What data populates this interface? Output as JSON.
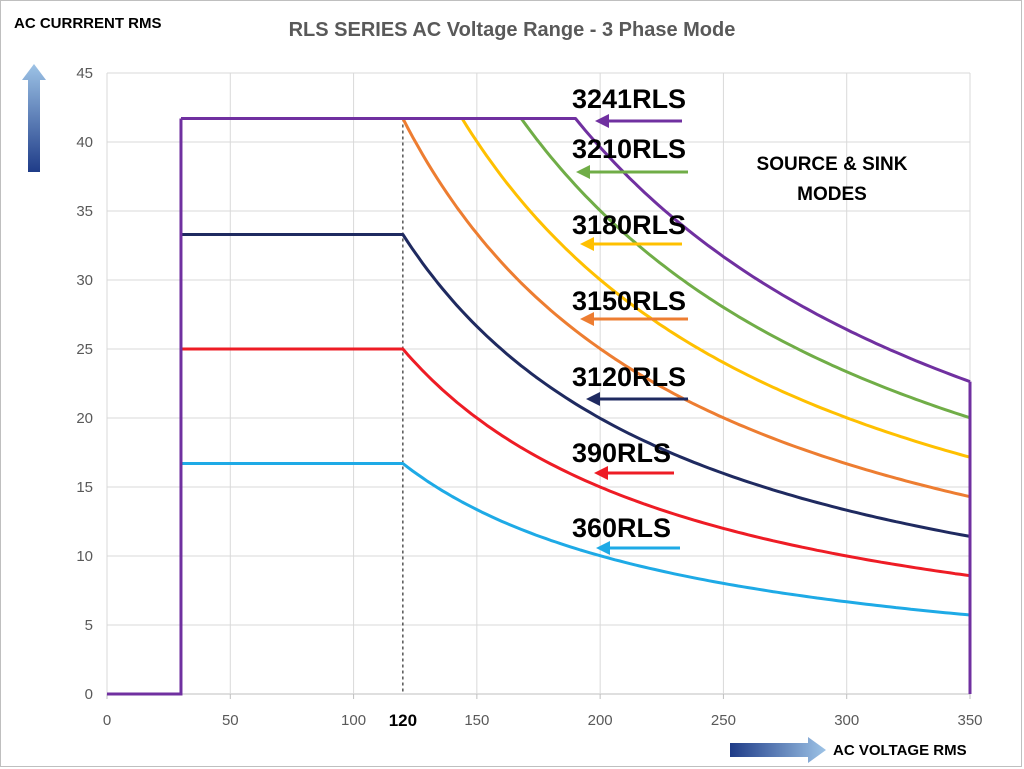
{
  "chart_data": {
    "type": "line",
    "title": "RLS SERIES AC Voltage Range - 3 Phase Mode",
    "xlabel": "AC VOLTAGE RMS",
    "ylabel": "AC CURRRENT RMS",
    "xlim": [
      0,
      350
    ],
    "ylim": [
      0,
      45
    ],
    "x_ticks": [
      "0",
      "50",
      "100",
      "120",
      "150",
      "200",
      "250",
      "300",
      "350"
    ],
    "y_ticks": [
      "0",
      "5",
      "10",
      "15",
      "20",
      "25",
      "30",
      "35",
      "40",
      "45"
    ],
    "grid": true,
    "reference_line": {
      "x": 120,
      "style": "dashed"
    },
    "annotation": [
      "SOURCE & SINK",
      "MODES"
    ],
    "series": [
      {
        "name": "3241RLS",
        "color": "#7030A0",
        "max_current": 41.7,
        "power_limit_voltage": 190
      },
      {
        "name": "3210RLS",
        "color": "#70AD47",
        "max_current": 41.7,
        "power_limit_voltage": 168
      },
      {
        "name": "3180RLS",
        "color": "#FFC000",
        "max_current": 41.7,
        "power_limit_voltage": 144
      },
      {
        "name": "3150RLS",
        "color": "#ED7D31",
        "max_current": 41.7,
        "power_limit_voltage": 120
      },
      {
        "name": "3120RLS",
        "color": "#1F2A60",
        "max_current": 33.3,
        "power_limit_voltage": 120
      },
      {
        "name": "390RLS",
        "color": "#EE1C25",
        "max_current": 25.0,
        "power_limit_voltage": 120
      },
      {
        "name": "360RLS",
        "color": "#1EAAE6",
        "max_current": 16.7,
        "power_limit_voltage": 120
      }
    ],
    "min_voltage": 30,
    "max_voltage": 350
  }
}
